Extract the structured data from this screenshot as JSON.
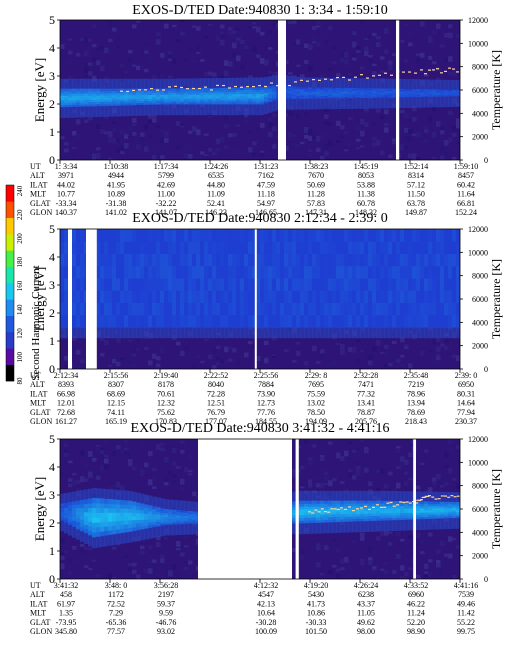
{
  "chart_data": [
    {
      "type": "heatmap",
      "title": "EXOS-D/TED   Date:940830   1: 3:34 - 1:59:10",
      "ylabel": "Energy [eV]",
      "y2label": "Temperature [K]",
      "ylim": [
        0,
        5
      ],
      "y2lim": [
        0,
        12000
      ],
      "yticks": [
        "0",
        "1",
        "2",
        "3",
        "4",
        "5"
      ],
      "y2ticks": [
        "0",
        "2000",
        "4000",
        "6000",
        "8000",
        "10000",
        "12000"
      ],
      "row_labels": [
        "UT",
        "ALT",
        "ILAT",
        "MLT",
        "GLAT",
        "GLON"
      ],
      "columns": [
        [
          "1: 3:34",
          "3971",
          "44.02",
          "10.77",
          "-33.34",
          "140.37"
        ],
        [
          "1:10:38",
          "4944",
          "41.95",
          "10.89",
          "-31.38",
          "141.02"
        ],
        [
          "1:17:34",
          "5799",
          "42.69",
          "11.00",
          "-32.22",
          "141.07"
        ],
        [
          "1:24:26",
          "6535",
          "44.80",
          "11.09",
          "52.41",
          "146.23"
        ],
        [
          "1:31:23",
          "7162",
          "47.59",
          "11.18",
          "54.97",
          "146.65"
        ],
        [
          "1:38:23",
          "7670",
          "50.69",
          "11.28",
          "57.83",
          "147.31"
        ],
        [
          "1:45:19",
          "8053",
          "53.88",
          "11.38",
          "60.78",
          "148.32"
        ],
        [
          "1:52:14",
          "8314",
          "57.12",
          "11.50",
          "63.78",
          "149.87"
        ],
        [
          "1:59:10",
          "8457",
          "60.42",
          "11.64",
          "66.81",
          "152.24"
        ]
      ],
      "data_gaps": [
        [
          0.545,
          0.565
        ],
        [
          0.84,
          0.848
        ]
      ],
      "band": [
        [
          0,
          1.9,
          2.55,
          0.6
        ],
        [
          0.25,
          2.0,
          2.55,
          0.55
        ],
        [
          0.5,
          2.0,
          2.6,
          0.55
        ],
        [
          0.545,
          2.2,
          2.7,
          0.1
        ],
        [
          0.6,
          2.2,
          2.6,
          0.2
        ],
        [
          0.84,
          2.25,
          2.55,
          0.15
        ],
        [
          1,
          2.3,
          2.5,
          0.15
        ]
      ],
      "temperature_trace": [
        [
          0.15,
          6000
        ],
        [
          0.3,
          6200
        ],
        [
          0.45,
          6300
        ],
        [
          0.6,
          6700
        ],
        [
          0.75,
          7200
        ],
        [
          0.9,
          7600
        ],
        [
          1,
          7800
        ]
      ]
    },
    {
      "type": "heatmap",
      "title": "EXOS-D/TED   Date:940830   2:12:34 - 2:39: 0",
      "ylabel": "Energy [eV]",
      "y2label": "Temperature [K]",
      "ylim": [
        0,
        5
      ],
      "y2lim": [
        0,
        12000
      ],
      "yticks": [
        "0",
        "1",
        "2",
        "3",
        "4",
        "5"
      ],
      "y2ticks": [
        "0",
        "2000",
        "4000",
        "6000",
        "8000",
        "10000",
        "12000"
      ],
      "row_labels": [
        "UT",
        "ALT",
        "ILAT",
        "MLT",
        "GLAT",
        "GLON"
      ],
      "columns": [
        [
          "2:12:34",
          "8393",
          "66.98",
          "12.01",
          "72.68",
          "161.27"
        ],
        [
          "2:15:56",
          "8307",
          "68.69",
          "12.15",
          "74.11",
          "165.19"
        ],
        [
          "2:19:40",
          "8178",
          "70.61",
          "12.32",
          "75.62",
          "170.83"
        ],
        [
          "2:22:52",
          "8040",
          "72.28",
          "12.51",
          "76.79",
          "177.07"
        ],
        [
          "2:25:56",
          "7884",
          "73.90",
          "12.73",
          "77.76",
          "184.55"
        ],
        [
          "2:29: 8",
          "7695",
          "75.59",
          "13.02",
          "78.50",
          "194.09"
        ],
        [
          "2:32:28",
          "7471",
          "77.32",
          "13.41",
          "78.87",
          "205.76"
        ],
        [
          "2:35:48",
          "7219",
          "78.96",
          "13.94",
          "78.69",
          "218.43"
        ],
        [
          "2:39: 0",
          "6950",
          "80.31",
          "14.64",
          "77.94",
          "230.37"
        ]
      ],
      "data_gaps": [
        [
          0.02,
          0.03
        ],
        [
          0.065,
          0.092
        ],
        [
          0.487,
          0.492
        ]
      ],
      "band": [
        [
          0,
          1.5,
          5,
          0.05
        ],
        [
          1,
          1.5,
          5,
          0.05
        ]
      ],
      "temperature_trace": []
    },
    {
      "type": "heatmap",
      "title": "EXOS-D/TED   Date:940830   3:41:32 - 4:41:16",
      "ylabel": "Energy [eV]",
      "y2label": "Temperature [K]",
      "ylim": [
        0,
        5
      ],
      "y2lim": [
        0,
        12000
      ],
      "yticks": [
        "0",
        "1",
        "2",
        "3",
        "4",
        "5"
      ],
      "y2ticks": [
        "0",
        "2000",
        "4000",
        "6000",
        "8000",
        "10000",
        "12000"
      ],
      "row_labels": [
        "UT",
        "ALT",
        "ILAT",
        "MLT",
        "GLAT",
        "GLON"
      ],
      "columns": [
        [
          "3:41:32",
          "458",
          "61.97",
          "1.35",
          "-73.95",
          "345.80"
        ],
        [
          "3:48: 0",
          "1172",
          "72.52",
          "7.29",
          "-65.36",
          "77.57"
        ],
        [
          "3:56:28",
          "2197",
          "59.37",
          "9.59",
          "-46.76",
          "93.02"
        ],
        [
          "",
          "",
          "",
          "",
          "",
          ""
        ],
        [
          "4:12:32",
          "4547",
          "42.13",
          "10.64",
          "-30.28",
          "100.09"
        ],
        [
          "4:19:20",
          "5430",
          "41.73",
          "10.86",
          "-30.33",
          "101.50"
        ],
        [
          "4:26:24",
          "6238",
          "43.37",
          "11.05",
          "49.62",
          "98.00"
        ],
        [
          "4:33:52",
          "6960",
          "46.22",
          "11.24",
          "52.20",
          "98.90"
        ],
        [
          "4:41:16",
          "7539",
          "49.46",
          "11.42",
          "55.22",
          "99.75"
        ]
      ],
      "data_gaps": [
        [
          0.345,
          0.58
        ],
        [
          0.589,
          0.597
        ],
        [
          0.883,
          0.89
        ]
      ],
      "band": [
        [
          0,
          2.1,
          2.7,
          0.15
        ],
        [
          0.08,
          1.5,
          2.9,
          0.75
        ],
        [
          0.17,
          1.7,
          2.8,
          0.7
        ],
        [
          0.26,
          1.95,
          2.5,
          0.45
        ],
        [
          0.345,
          2.0,
          2.4,
          0.3
        ],
        [
          0.597,
          2.0,
          2.8,
          0.7
        ],
        [
          0.8,
          2.1,
          2.8,
          0.65
        ],
        [
          1,
          2.2,
          2.75,
          0.65
        ]
      ],
      "temperature_trace": [
        [
          0.62,
          5900
        ],
        [
          0.7,
          6000
        ],
        [
          0.8,
          6300
        ],
        [
          0.88,
          6700
        ],
        [
          0.92,
          7000
        ],
        [
          1,
          7300
        ]
      ]
    }
  ],
  "colorbar": {
    "label": "Second Harmonic Current",
    "ticks": [
      "80",
      "100",
      "120",
      "140",
      "160",
      "180",
      "200",
      "220",
      "240"
    ],
    "colors": [
      "#000000",
      "#5a0aa0",
      "#283cc8",
      "#1e5ae0",
      "#1e8cf0",
      "#19c8f0",
      "#19e6aa",
      "#46f046",
      "#c8f000",
      "#ffc800",
      "#ff5000",
      "#ff0000"
    ]
  },
  "colors": {
    "background": "#2e1476",
    "band_low": "#1e3ed2",
    "band_high": "#1ad6f6",
    "trace": "#ffd2a0"
  }
}
